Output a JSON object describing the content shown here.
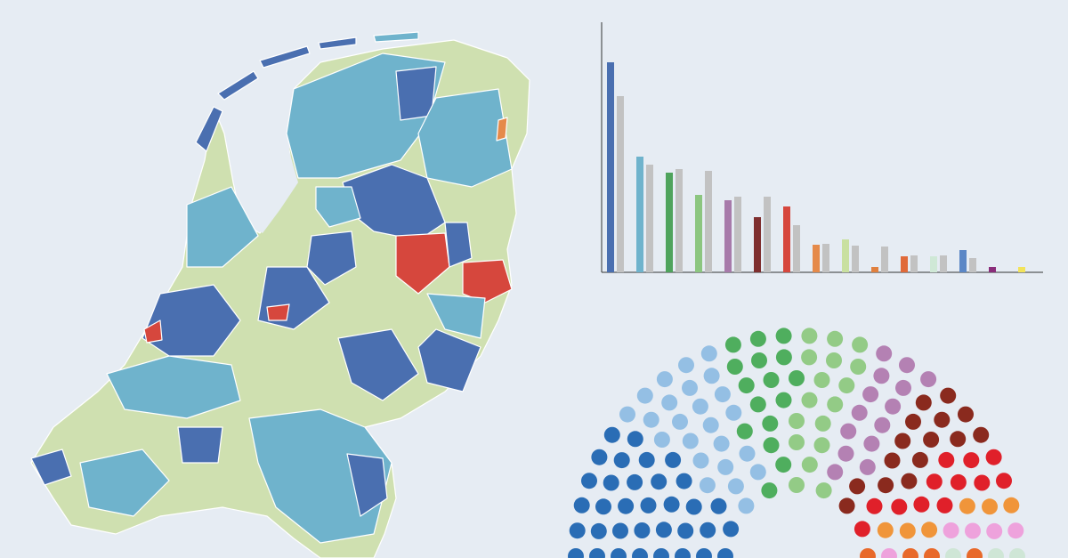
{
  "chart_data": [
    {
      "type": "bar",
      "categories": [
        null,
        null,
        null,
        null,
        null,
        null,
        null,
        null,
        null,
        null,
        null,
        null,
        null,
        null,
        null
      ],
      "series": [
        {
          "colors": [
            "#4a6fb0",
            "#6fb3cc",
            "#4fa35c",
            "#8cc680",
            "#a77aaa",
            "#7f2f2f",
            "#d6473d",
            "#e58a4a",
            "#c9e0a0",
            "#e0803f",
            "#e06a3a",
            "#cfe8d6",
            "#5b87c6",
            "#8a2d7a",
            "#f2e35a"
          ],
          "values": [
            236,
            130,
            112,
            87,
            81,
            62,
            74,
            31,
            37,
            6,
            18,
            18,
            25,
            6,
            6
          ]
        },
        {
          "color": "#c2c2c2",
          "values": [
            198,
            121,
            116,
            114,
            85,
            85,
            53,
            32,
            30,
            29,
            19,
            19,
            16,
            null,
            null
          ]
        }
      ],
      "ylim": [
        0,
        280
      ]
    },
    {
      "type": "seats",
      "parties": [
        {
          "color": "#2a6db5",
          "seats": 34
        },
        {
          "color": "#94bfe4",
          "seats": 24
        },
        {
          "color": "#4fae5e",
          "seats": 16
        },
        {
          "color": "#93cb86",
          "seats": 17
        },
        {
          "color": "#b481b3",
          "seats": 14
        },
        {
          "color": "#8a2a1e",
          "seats": 15
        },
        {
          "color": "#e0202a",
          "seats": 12
        },
        {
          "color": "#f0953a",
          "seats": 6
        },
        {
          "color": "#eea2dc",
          "seats": 5
        },
        {
          "color": "#e8692a",
          "seats": 4
        },
        {
          "color": "#cfe6d6",
          "seats": 3
        }
      ]
    }
  ]
}
